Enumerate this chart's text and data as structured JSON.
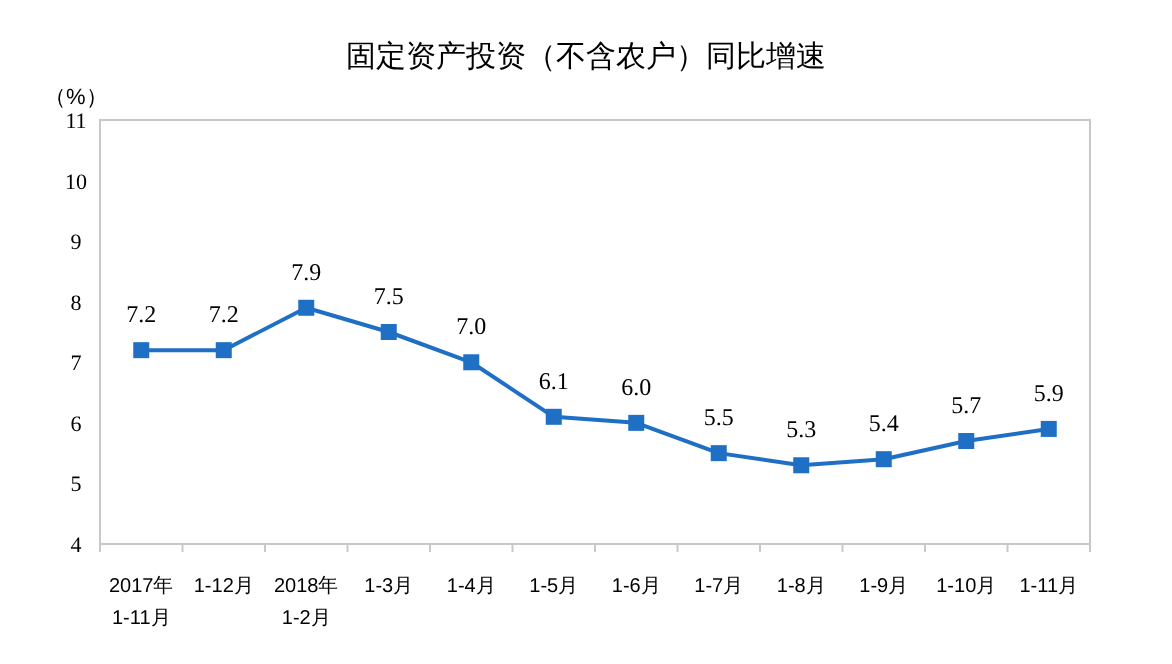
{
  "chart_data": {
    "type": "line",
    "title": "固定资产投资（不含农户）同比增速",
    "ylabel": "（%）",
    "categories": [
      "2017年\n1-11月",
      "1-12月",
      "2018年\n1-2月",
      "1-3月",
      "1-4月",
      "1-5月",
      "1-6月",
      "1-7月",
      "1-8月",
      "1-9月",
      "1-10月",
      "1-11月"
    ],
    "series": [
      {
        "color": "#1f6fc5",
        "values": [
          7.2,
          7.2,
          7.9,
          7.5,
          7.0,
          6.1,
          6.0,
          5.5,
          5.3,
          5.4,
          5.7,
          5.9
        ],
        "value_labels": [
          "7.2",
          "7.2",
          "7.9",
          "7.5",
          "7.0",
          "6.1",
          "6.0",
          "5.5",
          "5.3",
          "5.4",
          "5.7",
          "5.9"
        ]
      }
    ],
    "ylim": [
      4,
      11
    ],
    "yticks": [
      4,
      5,
      6,
      7,
      8,
      9,
      10,
      11
    ],
    "marker": "square",
    "line_style": "solid",
    "grid": false
  }
}
